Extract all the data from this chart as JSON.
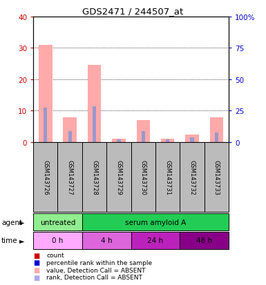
{
  "title": "GDS2471 / 244507_at",
  "samples": [
    "GSM143726",
    "GSM143727",
    "GSM143728",
    "GSM143729",
    "GSM143730",
    "GSM143731",
    "GSM143732",
    "GSM143733"
  ],
  "pink_bars": [
    31.0,
    8.0,
    24.5,
    1.0,
    7.0,
    1.2,
    2.5,
    8.0
  ],
  "blue_bars": [
    11.0,
    3.5,
    11.5,
    0.8,
    3.5,
    0.9,
    1.5,
    3.0
  ],
  "ylim_left": [
    0,
    40
  ],
  "ylim_right": [
    0,
    100
  ],
  "yticks_left": [
    0,
    10,
    20,
    30,
    40
  ],
  "yticks_right": [
    0,
    25,
    50,
    75,
    100
  ],
  "ytick_labels_right": [
    "0",
    "25",
    "50",
    "75",
    "100%"
  ],
  "agent_groups": [
    {
      "label": "untreated",
      "start": 0,
      "end": 2,
      "color": "#90ee90"
    },
    {
      "label": "serum amyloid A",
      "start": 2,
      "end": 8,
      "color": "#22cc55"
    }
  ],
  "time_colors": [
    "#ffaaff",
    "#dd66dd",
    "#bb22bb",
    "#880088"
  ],
  "time_groups": [
    {
      "label": "0 h",
      "start": 0,
      "end": 2
    },
    {
      "label": "4 h",
      "start": 2,
      "end": 4
    },
    {
      "label": "24 h",
      "start": 4,
      "end": 6
    },
    {
      "label": "48 h",
      "start": 6,
      "end": 8
    }
  ],
  "legend_colors": [
    "#cc0000",
    "#0000cc",
    "#ffaaaa",
    "#aaaaee"
  ],
  "legend_labels": [
    "count",
    "percentile rank within the sample",
    "value, Detection Call = ABSENT",
    "rank, Detection Call = ABSENT"
  ],
  "pink_color": "#ffaaaa",
  "blue_color": "#9999cc",
  "left_tick_color": "#cc0000",
  "right_tick_color": "#0000cc",
  "sample_bg": "#bbbbbb"
}
